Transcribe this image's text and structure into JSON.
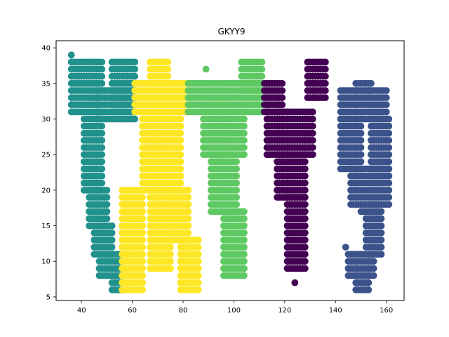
{
  "chart_data": {
    "type": "scatter",
    "title": "GKYY9",
    "xlabel": "",
    "ylabel": "",
    "xlim": [
      30,
      167
    ],
    "ylim": [
      4.5,
      41
    ],
    "xticks": [
      40,
      60,
      80,
      100,
      120,
      140,
      160
    ],
    "yticks": [
      5,
      10,
      15,
      20,
      25,
      30,
      35,
      40
    ],
    "grid": false,
    "legend": "none",
    "series": [
      {
        "color": "#21918c",
        "shapes": [
          {
            "y0": 31,
            "y1": 38,
            "rows": [
              [
                36,
                48
              ],
              [
                52,
                61
              ]
            ]
          },
          {
            "y0": 30,
            "y1": 34,
            "rows": [
              [
                46,
                61
              ]
            ]
          },
          {
            "y0": 20,
            "y1": 30,
            "rows": [
              [
                41,
                48
              ]
            ]
          },
          {
            "y0": 15,
            "y1": 20,
            "rows": [
              [
                43,
                50
              ]
            ]
          },
          {
            "y0": 11,
            "y1": 15,
            "rows": [
              [
                45,
                52
              ]
            ]
          },
          {
            "y0": 8,
            "y1": 11,
            "rows": [
              [
                47,
                56
              ]
            ]
          },
          {
            "y0": 6,
            "y1": 8,
            "rows": [
              [
                52,
                56
              ]
            ]
          }
        ],
        "points": [
          [
            36,
            39
          ],
          [
            36,
            32
          ],
          [
            37,
            31
          ]
        ]
      },
      {
        "color": "#fde725",
        "shapes": [
          {
            "y0": 31,
            "y1": 35,
            "rows": [
              [
                61,
                82
              ]
            ]
          },
          {
            "y0": 35,
            "y1": 38,
            "rows": [
              [
                67,
                74
              ]
            ]
          },
          {
            "y0": 20,
            "y1": 31,
            "rows": [
              [
                64,
                79
              ]
            ]
          },
          {
            "y0": 9,
            "y1": 20,
            "rows": [
              [
                67,
                75
              ]
            ]
          },
          {
            "y0": 6,
            "y1": 20,
            "rows": [
              [
                56,
                64
              ]
            ]
          },
          {
            "y0": 13,
            "y1": 20,
            "rows": [
              [
                75,
                82
              ]
            ]
          },
          {
            "y0": 6,
            "y1": 13,
            "rows": [
              [
                79,
                86
              ]
            ]
          }
        ],
        "points": []
      },
      {
        "color": "#5ec962",
        "shapes": [
          {
            "y0": 31,
            "y1": 35,
            "rows": [
              [
                82,
                111
              ]
            ]
          },
          {
            "y0": 34,
            "y1": 38,
            "rows": [
              [
                103,
                111
              ]
            ]
          },
          {
            "y0": 25,
            "y1": 31,
            "rows": [
              [
                88,
                104
              ]
            ]
          },
          {
            "y0": 17,
            "y1": 25,
            "rows": [
              [
                91,
                101
              ]
            ]
          },
          {
            "y0": 8,
            "y1": 17,
            "rows": [
              [
                96,
                104
              ]
            ]
          }
        ],
        "points": [
          [
            89,
            37
          ]
        ]
      },
      {
        "color": "#440154",
        "shapes": [
          {
            "y0": 31,
            "y1": 35,
            "rows": [
              [
                112,
                119
              ]
            ]
          },
          {
            "y0": 33,
            "y1": 38,
            "rows": [
              [
                129,
                136
              ]
            ]
          },
          {
            "y0": 25,
            "y1": 31,
            "rows": [
              [
                113,
                131
              ]
            ]
          },
          {
            "y0": 19,
            "y1": 25,
            "rows": [
              [
                117,
                128
              ]
            ]
          },
          {
            "y0": 9,
            "y1": 19,
            "rows": [
              [
                121,
                128
              ]
            ]
          }
        ],
        "points": [
          [
            124,
            7
          ]
        ]
      },
      {
        "color": "#3b528b",
        "shapes": [
          {
            "y0": 30,
            "y1": 34,
            "rows": [
              [
                142,
                160
              ]
            ]
          },
          {
            "y0": 34,
            "y1": 35,
            "rows": [
              [
                148,
                154
              ]
            ]
          },
          {
            "y0": 23,
            "y1": 30,
            "rows": [
              [
                142,
                150
              ],
              [
                154,
                161
              ]
            ]
          },
          {
            "y0": 18,
            "y1": 23,
            "rows": [
              [
                146,
                161
              ]
            ]
          },
          {
            "y0": 17,
            "y1": 18,
            "rows": [
              [
                150,
                157
              ]
            ]
          },
          {
            "y0": 11,
            "y1": 17,
            "rows": [
              [
                152,
                158
              ]
            ]
          },
          {
            "y0": 8,
            "y1": 11,
            "rows": [
              [
                145,
                155
              ]
            ]
          },
          {
            "y0": 6,
            "y1": 8,
            "rows": [
              [
                148,
                153
              ]
            ]
          }
        ],
        "points": [
          [
            144,
            12
          ]
        ]
      }
    ]
  }
}
